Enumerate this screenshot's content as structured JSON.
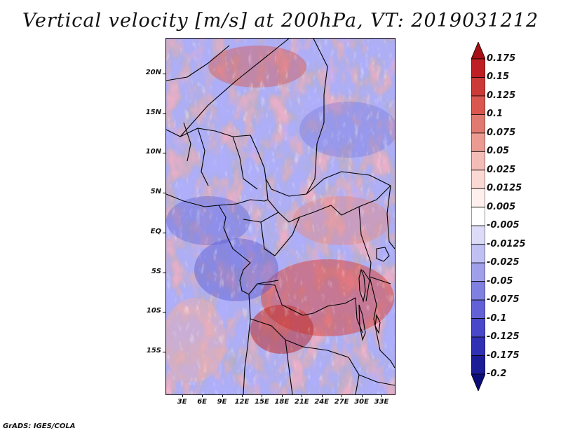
{
  "title": "Vertical velocity [m/s] at 200hPa, VT: 2019031212",
  "credit": "GrADS: IGES/COLA",
  "map": {
    "lon_labels": [
      "3E",
      "6E",
      "9E",
      "12E",
      "15E",
      "18E",
      "21E",
      "24E",
      "27E",
      "30E",
      "33E"
    ],
    "lon_values": [
      3,
      6,
      9,
      12,
      15,
      18,
      21,
      24,
      27,
      30,
      33
    ],
    "lon_range": [
      0.5,
      34.9
    ],
    "lat_labels": [
      "20N",
      "15N",
      "10N",
      "5N",
      "EQ",
      "5S",
      "10S",
      "15S"
    ],
    "lat_values": [
      20,
      15,
      10,
      5,
      0,
      -5,
      -10,
      -15
    ],
    "lat_range": [
      -20.3,
      24.5
    ]
  },
  "colorbar": {
    "labels": [
      "0.175",
      "0.15",
      "0.125",
      "0.1",
      "0.075",
      "0.05",
      "0.025",
      "0.0125",
      "0.005",
      "-0.005",
      "-0.0125",
      "-0.025",
      "-0.05",
      "-0.075",
      "-0.1",
      "-0.125",
      "-0.175",
      "-0.2"
    ],
    "colors": [
      "#a50f15",
      "#bd1f24",
      "#cb3a36",
      "#d9574f",
      "#e07a70",
      "#eb9a92",
      "#f4bcb6",
      "#fad8d4",
      "#fff0ee",
      "#ffffff",
      "#dcdcf8",
      "#c0c0f2",
      "#a0a0ea",
      "#8080e0",
      "#6262d6",
      "#4848c8",
      "#3030b4",
      "#1c1c96",
      "#0d0d7a"
    ]
  }
}
